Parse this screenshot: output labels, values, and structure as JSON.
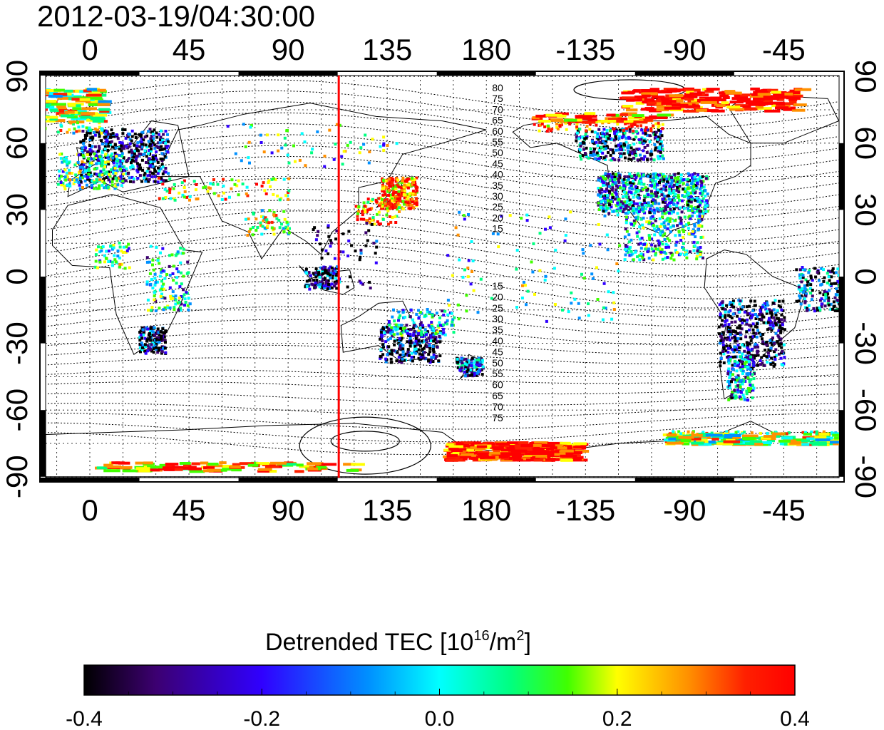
{
  "map": {
    "timestamp": "2012-03-19/04:30:00",
    "top_lon_ticks": [
      "0",
      "45",
      "90",
      "135",
      "180",
      "-135",
      "-90",
      "-45"
    ],
    "bottom_lon_ticks": [
      "0",
      "45",
      "90",
      "135",
      "180",
      "-135",
      "-90",
      "-45"
    ],
    "left_lat_ticks": [
      "90",
      "60",
      "30",
      "0",
      "-30",
      "-60",
      "-90"
    ],
    "right_lat_ticks": [
      "90",
      "60",
      "30",
      "0",
      "-30",
      "-60",
      "-90"
    ],
    "magnetic_contour_labels_north": [
      "80",
      "75",
      "70",
      "65",
      "60",
      "55",
      "50",
      "45",
      "40",
      "35",
      "30",
      "25",
      "20",
      "15"
    ],
    "magnetic_contour_labels_south": [
      "15",
      "20",
      "25",
      "30",
      "35",
      "40",
      "45",
      "50",
      "55",
      "60",
      "65",
      "70",
      "75"
    ],
    "terminator_longitude": 113,
    "terminator_color": "#ff0000"
  },
  "colorbar": {
    "title_prefix": "Detrended TEC  [10",
    "title_exp1": "16",
    "title_mid": "/m",
    "title_exp2": "2",
    "title_suffix": "]",
    "ticks": [
      "-0.4",
      "-0.2",
      "0.0",
      "0.2",
      "0.4"
    ],
    "min": -0.4,
    "max": 0.4,
    "colors": [
      "#000000",
      "#3c0070",
      "#3000ff",
      "#0090ff",
      "#00ffff",
      "#00ff80",
      "#40ff00",
      "#ffff00",
      "#ff9000",
      "#ff2000",
      "#ff0000"
    ]
  }
}
